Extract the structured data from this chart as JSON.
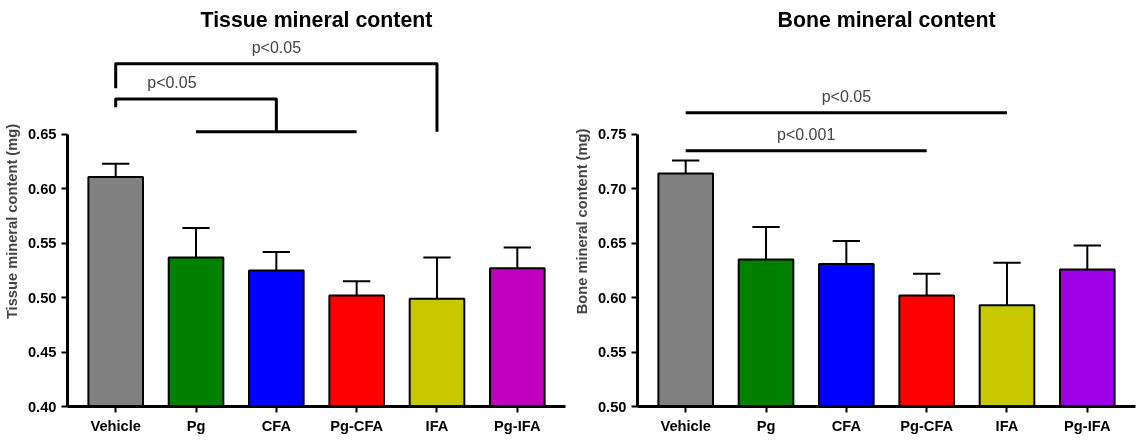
{
  "chart_data": [
    {
      "type": "bar",
      "title": "Tissue mineral content",
      "ylabel": "Tissue mineral content (mg)",
      "categories": [
        "Vehicle",
        "Pg",
        "CFA",
        "Pg-CFA",
        "IFA",
        "Pg-IFA"
      ],
      "values": [
        0.611,
        0.537,
        0.525,
        0.502,
        0.499,
        0.527
      ],
      "errors": [
        0.012,
        0.027,
        0.017,
        0.013,
        0.038,
        0.019
      ],
      "colors": [
        "#808080",
        "#008000",
        "#0000ff",
        "#ff0000",
        "#c8c800",
        "#c000c0"
      ],
      "ylim": [
        0.4,
        0.65
      ],
      "yticks": [
        {
          "value": 0.4,
          "label": "0.40"
        },
        0.45,
        {
          "value": 0.5,
          "label": "0.50"
        },
        0.55,
        {
          "value": 0.6,
          "label": "0.60"
        },
        0.65
      ],
      "annotations": [
        "p<0.05",
        "p<0.05"
      ],
      "grid": false
    },
    {
      "type": "bar",
      "title": "Bone mineral content",
      "ylabel": "Bone mineral content (mg)",
      "categories": [
        "Vehicle",
        "Pg",
        "CFA",
        "Pg-CFA",
        "IFA",
        "Pg-IFA"
      ],
      "values": [
        0.714,
        0.635,
        0.631,
        0.602,
        0.593,
        0.626
      ],
      "errors": [
        0.012,
        0.03,
        0.021,
        0.02,
        0.039,
        0.022
      ],
      "colors": [
        "#808080",
        "#008000",
        "#0000ff",
        "#ff0000",
        "#c8c800",
        "#a000e8"
      ],
      "ylim": [
        0.5,
        0.75
      ],
      "yticks": [
        {
          "value": 0.5,
          "label": "0.50"
        },
        0.55,
        {
          "value": 0.6,
          "label": "0.60"
        },
        0.65,
        {
          "value": 0.7,
          "label": "0.70"
        },
        0.75
      ],
      "annotations": [
        "p<0.001",
        "p<0.05"
      ],
      "grid": false
    }
  ]
}
